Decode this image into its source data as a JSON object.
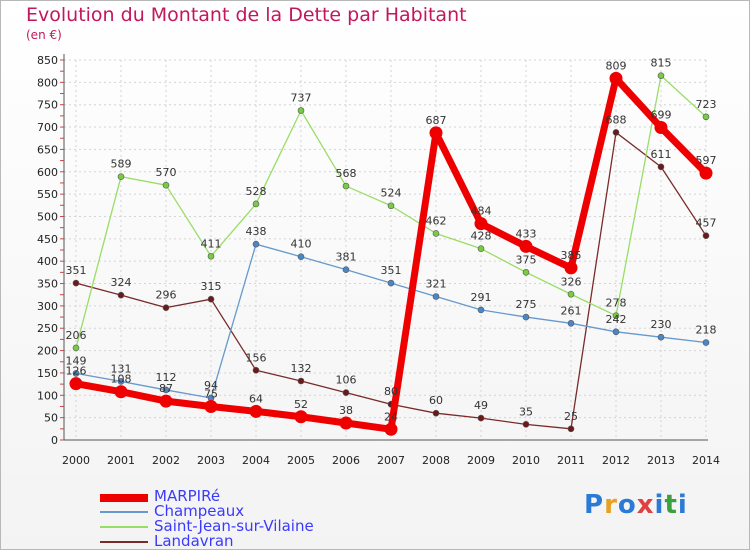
{
  "header": {
    "title": "Evolution du Montant de la Dette par Habitant",
    "subtitle": "(en €)"
  },
  "logo": {
    "text": "Proxiti",
    "colors": [
      "#2b7bd6",
      "#e8a020",
      "#2b7bd6",
      "#e04040",
      "#2b7bd6",
      "#3aa040",
      "#2b7bd6"
    ]
  },
  "chart_data": {
    "type": "line",
    "title": "Evolution du Montant de la Dette par Habitant",
    "subtitle": "(en €)",
    "x": [
      "2000",
      "2001",
      "2002",
      "2003",
      "2004",
      "2005",
      "2006",
      "2007",
      "2008",
      "2009",
      "2010",
      "2011",
      "2012",
      "2013",
      "2014"
    ],
    "ylim": [
      0,
      850
    ],
    "yticks": [
      0,
      50,
      100,
      150,
      200,
      250,
      300,
      350,
      400,
      450,
      500,
      550,
      600,
      650,
      700,
      750,
      800,
      850
    ],
    "grid": true,
    "legend_position": "bottom-left",
    "series": [
      {
        "name": "MARPIRé",
        "color": "#ee0000",
        "marker": "#ee0000",
        "values": [
          126,
          108,
          87,
          75,
          64,
          52,
          38,
          24,
          687,
          484,
          433,
          385,
          809,
          699,
          597
        ],
        "labels": [
          "126",
          "108",
          "87",
          "75",
          "64",
          "52",
          "38",
          "24",
          "687",
          "484",
          "433",
          "385",
          "809",
          "699",
          "597"
        ]
      },
      {
        "name": "Champeaux",
        "color": "#6699cc",
        "marker": "#4a86c8",
        "values": [
          149,
          131,
          112,
          94,
          438,
          410,
          381,
          351,
          321,
          291,
          275,
          261,
          242,
          230,
          218
        ],
        "labels": [
          "149",
          "131",
          "112",
          "94",
          "438",
          "410",
          "381",
          "351",
          "321",
          "291",
          "275",
          "261",
          "242",
          "230",
          "218"
        ]
      },
      {
        "name": "Saint-Jean-sur-Vilaine",
        "color": "#99dd66",
        "marker": "#77cc44",
        "values": [
          206,
          589,
          570,
          411,
          528,
          737,
          568,
          524,
          462,
          428,
          375,
          326,
          278,
          815,
          723
        ],
        "labels": [
          "206",
          "589",
          "570",
          "411",
          "528",
          "737",
          "568",
          "524",
          "462",
          "428",
          "375",
          "326",
          "278",
          "815",
          "723"
        ]
      },
      {
        "name": "Landavran",
        "color": "#7a2a2a",
        "marker": "#6a1a1a",
        "values": [
          351,
          324,
          296,
          315,
          156,
          132,
          106,
          80,
          60,
          49,
          35,
          25,
          688,
          611,
          457
        ],
        "labels": [
          "351",
          "324",
          "296",
          "315",
          "156",
          "132",
          "106",
          "80",
          "60",
          "49",
          "35",
          "25",
          "688",
          "611",
          "457"
        ]
      }
    ]
  }
}
